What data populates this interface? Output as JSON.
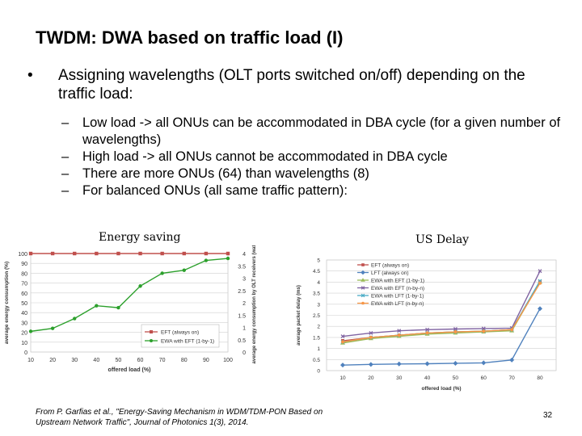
{
  "slide": {
    "title": "TWDM: DWA based on traffic load (I)",
    "bullet": "Assigning wavelengths (OLT ports switched on/off) depending on the traffic load:",
    "bullet_symbol": "•",
    "dash_symbol": "–",
    "subbullets": [
      "Low load -> all ONUs can be accommodated in DBA cycle (for a given number of wavelengths)",
      "High load -> all ONUs cannot be accommodated in DBA cycle",
      "There are more ONUs (64) than wavelengths (8)",
      "For balanced ONUs (all same traffic pattern):"
    ],
    "footer_line1": "From P. Garfias et al., \"Energy-Saving Mechanism in WDM/TDM-PON Based on",
    "footer_line2": "Upstream Network Traffic\", Journal of Photonics 1(3), 2014.",
    "page_number": "32"
  },
  "chart_data": [
    {
      "type": "line",
      "caption": "Energy saving",
      "x": [
        10,
        20,
        30,
        40,
        50,
        60,
        70,
        80,
        90,
        100
      ],
      "xlabel": "offered load (%)",
      "ylabel": "average energy consumption (%)",
      "ylabel_right": "average energy consumption by OLT receivers (watt)",
      "ylim": [
        0,
        100
      ],
      "ylim_right": [
        0,
        4
      ],
      "yticks": [
        0,
        10,
        20,
        30,
        40,
        50,
        60,
        70,
        80,
        90,
        100
      ],
      "yticks_right": [
        "0",
        "0.5",
        "1",
        "1.5",
        "2",
        "2.5",
        "3",
        "3.5",
        "4"
      ],
      "grid": true,
      "legend_position": "bottom-right",
      "series": [
        {
          "name": "EFT (always on)",
          "color": "#c0504d",
          "marker": "square",
          "values": [
            100,
            100,
            100,
            100,
            100,
            100,
            100,
            100,
            100,
            100
          ]
        },
        {
          "name": "EWA with EFT (1-by-1)",
          "color": "#2ca02c",
          "marker": "circle",
          "values": [
            21,
            24,
            34,
            47,
            45,
            67,
            80,
            83,
            93,
            95
          ]
        }
      ]
    },
    {
      "type": "line",
      "caption": "US Delay",
      "x": [
        10,
        20,
        30,
        40,
        50,
        60,
        70,
        80
      ],
      "xlabel": "offered load (%)",
      "ylabel": "average packet delay (ms)",
      "ylim": [
        0,
        5
      ],
      "yticks": [
        "0",
        "0.5",
        "1",
        "1.5",
        "2",
        "2.5",
        "3",
        "3.5",
        "4",
        "4.5",
        "5"
      ],
      "grid": true,
      "legend_position": "top-right",
      "series": [
        {
          "name": "EFT (always on)",
          "color": "#c0504d",
          "marker": "square",
          "values": [
            1.35,
            1.5,
            1.6,
            1.7,
            1.75,
            1.78,
            1.85,
            4.0
          ]
        },
        {
          "name": "LFT (always on)",
          "color": "#4f81bd",
          "marker": "diamond",
          "values": [
            0.25,
            0.28,
            0.3,
            0.31,
            0.33,
            0.35,
            0.48,
            2.8
          ]
        },
        {
          "name": "EWA with EFT (1-by-1)",
          "color": "#9bbb59",
          "marker": "triangle",
          "values": [
            1.25,
            1.45,
            1.55,
            1.65,
            1.7,
            1.75,
            1.8,
            4.0
          ]
        },
        {
          "name": "EWA with EFT (n-by-n)",
          "color": "#8064a2",
          "marker": "x",
          "values": [
            1.55,
            1.7,
            1.8,
            1.85,
            1.88,
            1.9,
            1.92,
            4.5
          ]
        },
        {
          "name": "EWA with LFT (1-by-1)",
          "color": "#4bacc6",
          "marker": "x",
          "values": [
            1.3,
            1.5,
            1.6,
            1.7,
            1.75,
            1.78,
            1.85,
            4.05
          ]
        },
        {
          "name": "EWA with LFT (n-by-n)",
          "color": "#f79646",
          "marker": "circle",
          "values": [
            1.3,
            1.5,
            1.6,
            1.7,
            1.75,
            1.78,
            1.85,
            3.95
          ]
        }
      ]
    }
  ]
}
